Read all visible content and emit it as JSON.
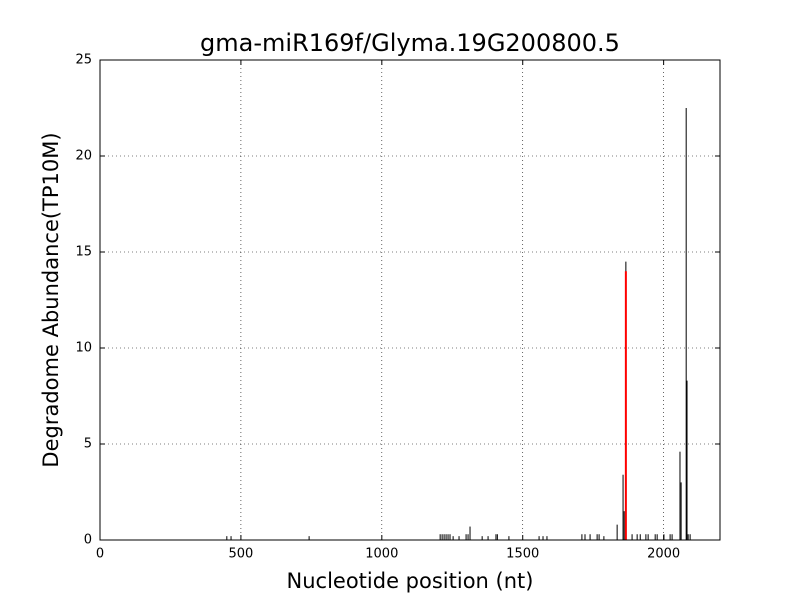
{
  "chart_data": {
    "type": "vlines",
    "title": "gma-miR169f/Glyma.19G200800.5",
    "xlabel": "Nucleotide position (nt)",
    "ylabel": "Degradome Abundance(TP10M)",
    "xlim": [
      0,
      2200
    ],
    "xticks": [
      0,
      500,
      1000,
      1500,
      2000
    ],
    "ylim": [
      0,
      25
    ],
    "yticks": [
      0,
      5,
      10,
      15,
      20,
      25
    ],
    "grid": true,
    "series": [
      {
        "color": "#000000",
        "x": [
          450,
          465,
          742,
          1207,
          1214,
          1221,
          1228,
          1235,
          1242,
          1253,
          1274,
          1299,
          1306,
          1313,
          1356,
          1377,
          1405,
          1410,
          1451,
          1558,
          1572,
          1586,
          1710,
          1721,
          1739,
          1764,
          1771,
          1788,
          1835,
          1856,
          1860,
          1866,
          1888,
          1906,
          1917,
          1937,
          1945,
          1970,
          1977,
          2001,
          2023,
          2030,
          2058,
          2062,
          2080,
          2083,
          2087,
          2094
        ],
        "values": [
          0.2,
          0.2,
          0.2,
          0.3,
          0.3,
          0.3,
          0.3,
          0.3,
          0.3,
          0.2,
          0.2,
          0.3,
          0.3,
          0.7,
          0.2,
          0.2,
          0.3,
          0.3,
          0.2,
          0.2,
          0.2,
          0.2,
          0.3,
          0.3,
          0.3,
          0.3,
          0.3,
          0.2,
          0.8,
          3.4,
          1.5,
          14.5,
          0.3,
          0.3,
          0.3,
          0.3,
          0.3,
          0.3,
          0.3,
          0.3,
          0.3,
          0.3,
          4.6,
          3.0,
          22.5,
          8.3,
          0.3,
          0.3
        ]
      },
      {
        "color": "#ff0000",
        "width": 2,
        "x": [
          1866
        ],
        "values": [
          14
        ]
      }
    ]
  }
}
